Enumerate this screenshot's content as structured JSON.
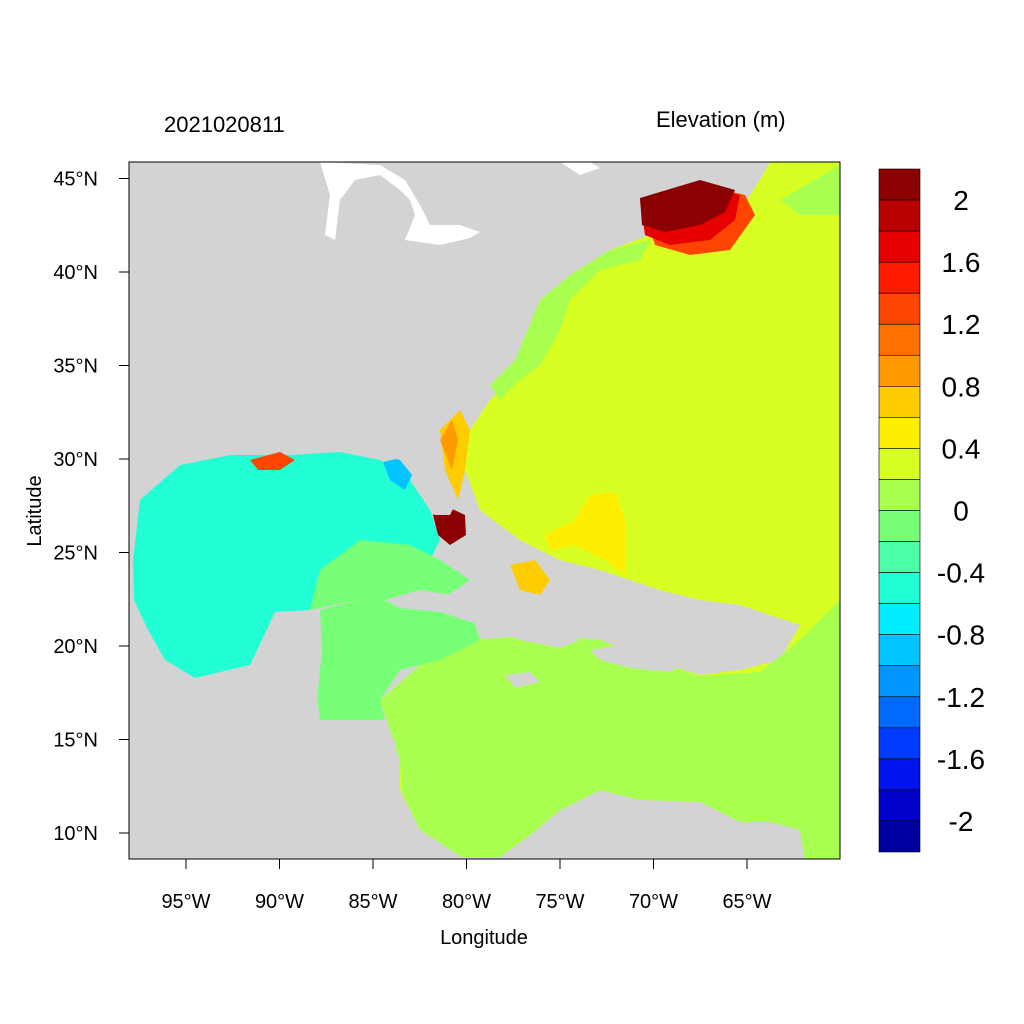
{
  "header": {
    "timestamp": "2021020811",
    "variable_label": "Elevation (m)"
  },
  "axes": {
    "xlabel": "Longitude",
    "ylabel": "Latitude",
    "lon_ticks": [
      "95°W",
      "90°W",
      "85°W",
      "80°W",
      "75°W",
      "70°W",
      "65°W"
    ],
    "lat_ticks": [
      "10°N",
      "15°N",
      "20°N",
      "25°N",
      "30°N",
      "35°N",
      "40°N",
      "45°N"
    ]
  },
  "colorbar": {
    "labels": [
      "2",
      "1.6",
      "1.2",
      "0.8",
      "0.4",
      "0",
      "-0.4",
      "-0.8",
      "-1.2",
      "-1.6",
      "-2"
    ],
    "colors": [
      "#8b0000",
      "#b80000",
      "#e60000",
      "#ff1a00",
      "#ff4500",
      "#ff7000",
      "#ff9a00",
      "#ffcc00",
      "#ffee00",
      "#d8ff22",
      "#a8ff50",
      "#78ff78",
      "#4affa6",
      "#22ffd4",
      "#00eeff",
      "#00c4ff",
      "#0096ff",
      "#006aff",
      "#003cff",
      "#0014ee",
      "#0000c8",
      "#0000a0"
    ]
  },
  "map_colors": {
    "land": "#d3d3d3",
    "gulf": "#22ffd4",
    "atlantic": "#d8ff22",
    "shelf": "#a8ff50",
    "high_surge": "#8b0000"
  }
}
